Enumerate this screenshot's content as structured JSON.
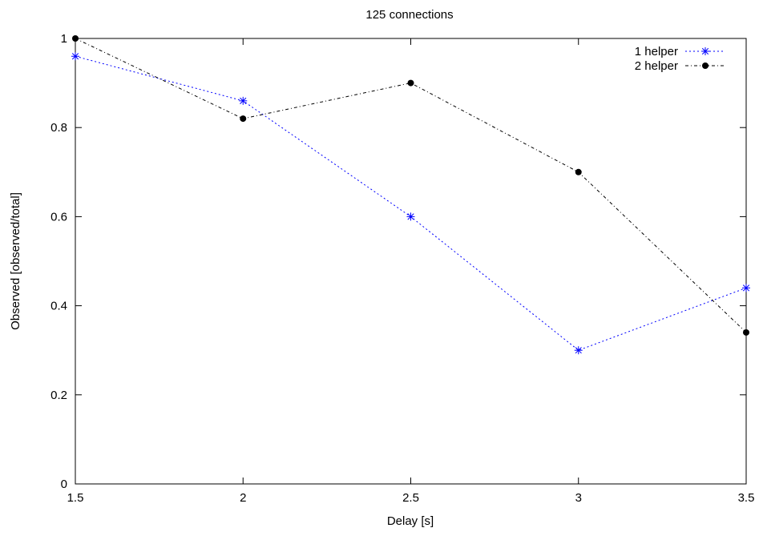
{
  "chart_data": {
    "type": "line",
    "title": "125 connections",
    "xlabel": "Delay [s]",
    "ylabel": "Observed [observed/total]",
    "xlim": [
      1.5,
      3.5
    ],
    "ylim": [
      0,
      1
    ],
    "x_ticks": [
      1.5,
      2,
      2.5,
      3,
      3.5
    ],
    "x_tick_labels": [
      "1.5",
      "2",
      "2.5",
      "3",
      "3.5"
    ],
    "y_ticks": [
      0,
      0.2,
      0.4,
      0.6,
      0.8,
      1
    ],
    "y_tick_labels": [
      "0",
      "0.2",
      "0.4",
      "0.6",
      "0.8",
      "1"
    ],
    "grid": false,
    "legend_position": "top-right",
    "series": [
      {
        "name": "1 helper",
        "color": "#0000ff",
        "marker": "asterisk",
        "line_style": "dotted",
        "x": [
          1.5,
          2,
          2.5,
          3,
          3.5
        ],
        "y": [
          0.96,
          0.86,
          0.6,
          0.3,
          0.44
        ]
      },
      {
        "name": "2 helper",
        "color": "#000000",
        "marker": "filled-circle",
        "line_style": "dash-dot",
        "x": [
          1.5,
          2,
          2.5,
          3,
          3.5
        ],
        "y": [
          1.0,
          0.82,
          0.9,
          0.7,
          0.34
        ]
      }
    ]
  }
}
